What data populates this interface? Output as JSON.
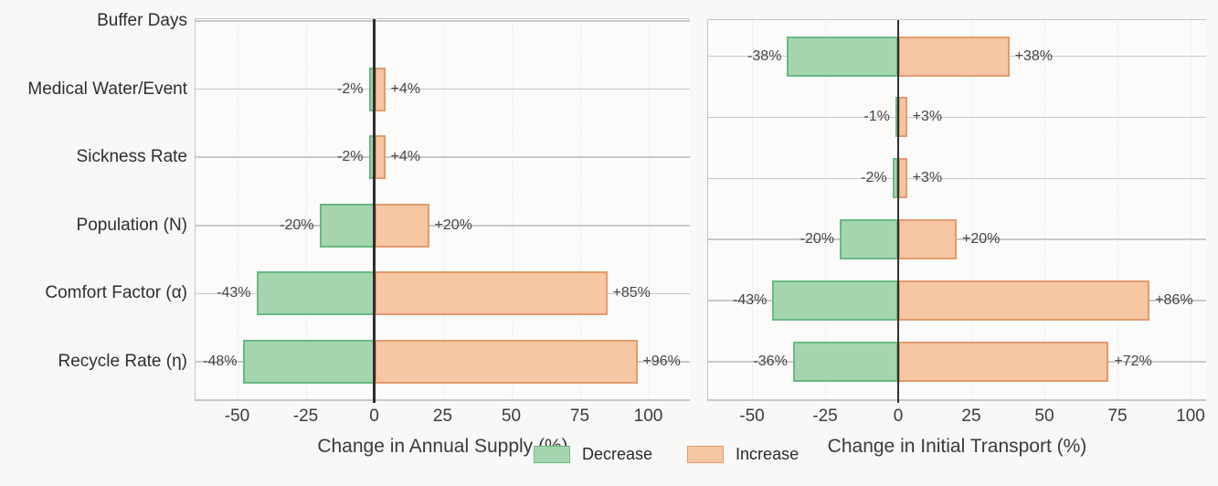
{
  "figure": {
    "background": "#f8f8f6",
    "plot_background": "#fbfbfa",
    "legend": {
      "items": [
        {
          "label": "Decrease",
          "fill": "#a5d5ae",
          "border": "#6ab885"
        },
        {
          "label": "Increase",
          "fill": "#f7c6a3",
          "border": "#e39a6e"
        }
      ]
    }
  },
  "colors": {
    "decrease_fill": "#a5d5ae",
    "decrease_border": "#6ab885",
    "increase_fill": "#f7c6a3",
    "increase_border": "#e39a6e",
    "zero_line": "#2f2f2f",
    "grid_line": "#c9c9c9",
    "tick_text": "#3b3b3b",
    "category_text": "#2e2e2e"
  },
  "chart_data": [
    {
      "type": "bar",
      "orientation": "horizontal",
      "title": "",
      "xlabel": "Change in Annual Supply (%)",
      "ylabel": "",
      "categories": [
        "Buffer Days",
        "Medical Water/Event",
        "Sickness Rate",
        "Population (N)",
        "Comfort Factor (α)",
        "Recycle Rate (η)"
      ],
      "series": [
        {
          "name": "Decrease",
          "values": [
            0,
            -2,
            -2,
            -20,
            -43,
            -48
          ],
          "labels": [
            "",
            "-2%",
            "-2%",
            "-20%",
            "-43%",
            "-48%"
          ]
        },
        {
          "name": "Increase",
          "values": [
            0,
            4,
            4,
            20,
            85,
            96
          ],
          "labels": [
            "",
            "+4%",
            "+4%",
            "+20%",
            "+85%",
            "+96%"
          ]
        }
      ],
      "xticks": [
        -50,
        -25,
        0,
        25,
        50,
        75,
        100
      ],
      "xlim": [
        -65,
        115
      ],
      "grid": true,
      "show_category_labels": true,
      "legend_position": "bottom-center"
    },
    {
      "type": "bar",
      "orientation": "horizontal",
      "title": "",
      "xlabel": "Change in Initial Transport (%)",
      "ylabel": "",
      "categories": [
        "Buffer Days",
        "Medical Water/Event",
        "Sickness Rate",
        "Population (N)",
        "Comfort Factor (α)",
        "Recycle Rate (η)"
      ],
      "series": [
        {
          "name": "Decrease",
          "values": [
            -38,
            -1,
            -2,
            -20,
            -43,
            -36
          ],
          "labels": [
            "-38%",
            "-1%",
            "-2%",
            "-20%",
            "-43%",
            "-36%"
          ]
        },
        {
          "name": "Increase",
          "values": [
            38,
            3,
            3,
            20,
            86,
            72
          ],
          "labels": [
            "+38%",
            "+3%",
            "+3%",
            "+20%",
            "+86%",
            "+72%"
          ]
        }
      ],
      "xticks": [
        -50,
        -25,
        0,
        25,
        50,
        75,
        100
      ],
      "xlim": [
        -65,
        106
      ],
      "grid": true,
      "show_category_labels": false,
      "legend_position": "bottom-center"
    }
  ]
}
